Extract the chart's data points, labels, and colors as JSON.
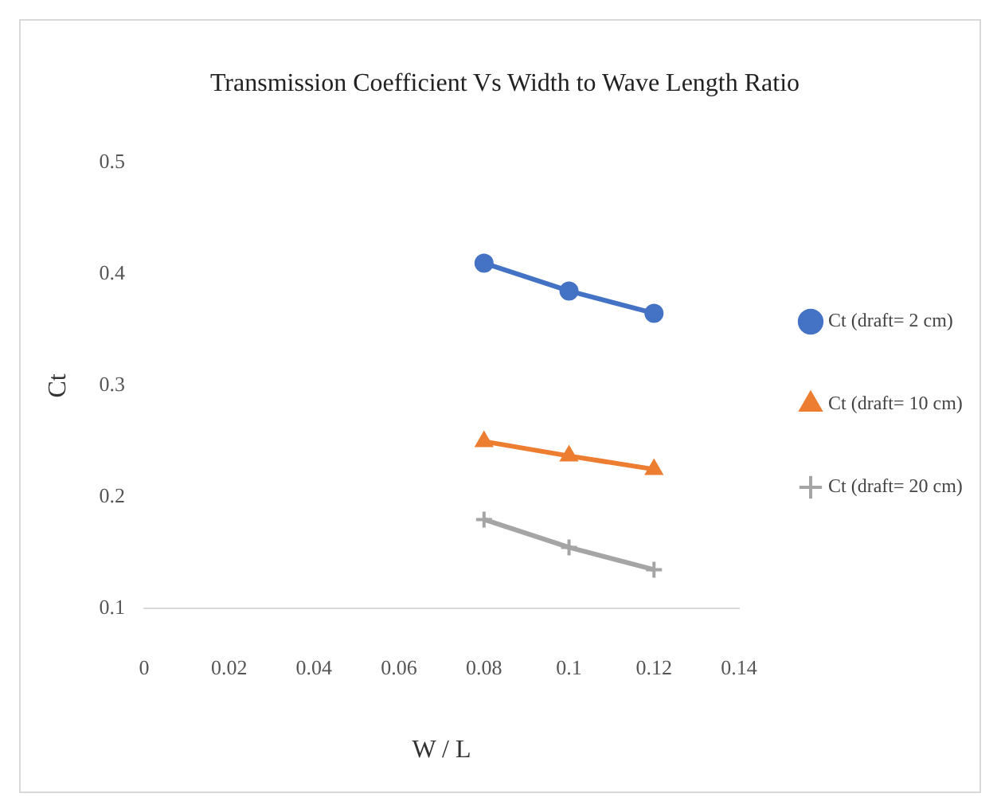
{
  "chart_data": {
    "type": "line",
    "title": "Transmission Coefficient Vs Width to Wave Length Ratio",
    "xlabel": "W / L",
    "ylabel": "Ct",
    "x": [
      0.08,
      0.1,
      0.12
    ],
    "series": [
      {
        "name": "Ct (draft= 2 cm)",
        "color": "#4472c4",
        "values": [
          0.41,
          0.385,
          0.365
        ],
        "marker": "circle"
      },
      {
        "name": "Ct (draft= 10 cm)",
        "color": "#ed7d31",
        "values": [
          0.25,
          0.237,
          0.225
        ],
        "marker": "triangle"
      },
      {
        "name": "Ct (draft= 20 cm)",
        "color": "#a5a5a5",
        "values": [
          0.18,
          0.155,
          0.135
        ],
        "marker": "cross"
      }
    ],
    "xlim": [
      0,
      0.14
    ],
    "xticks": [
      0,
      0.02,
      0.04,
      0.06,
      0.08,
      0.1,
      0.12,
      0.14
    ],
    "ylim": [
      0.1,
      0.5
    ],
    "yticks": [
      0.1,
      0.2,
      0.3,
      0.4,
      0.5
    ],
    "grid": false,
    "legend": "right",
    "line_style": "solid"
  }
}
